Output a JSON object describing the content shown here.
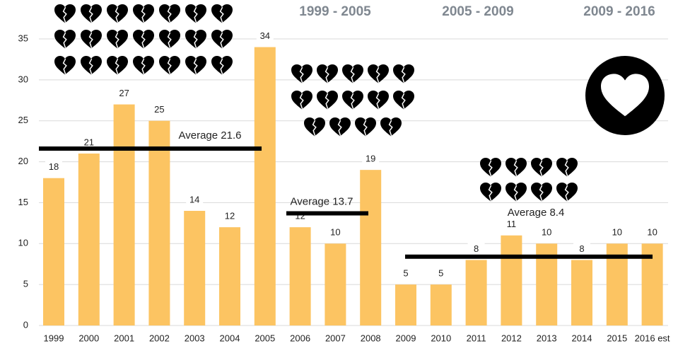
{
  "chart_data": {
    "type": "bar",
    "categories": [
      "1999",
      "2000",
      "2001",
      "2002",
      "2003",
      "2004",
      "2005",
      "2006",
      "2007",
      "2008",
      "2009",
      "2010",
      "2011",
      "2012",
      "2013",
      "2014",
      "2015",
      "2016 est"
    ],
    "values": [
      18,
      21,
      27,
      25,
      14,
      12,
      34,
      12,
      10,
      19,
      5,
      5,
      8,
      11,
      10,
      8,
      10,
      10
    ],
    "color": "#fcc462",
    "ylim": [
      0,
      35
    ],
    "yticks": [
      0,
      5,
      10,
      15,
      20,
      25,
      30,
      35
    ],
    "grid": true,
    "periods": [
      "1999 - 2005",
      "2005 - 2009",
      "2009 - 2016"
    ],
    "averages": [
      {
        "value": 21.6,
        "label": "Average 21.6"
      },
      {
        "value": 13.7,
        "label": "Average 13.7"
      },
      {
        "value": 8.4,
        "label": "Average 8.4"
      }
    ]
  }
}
